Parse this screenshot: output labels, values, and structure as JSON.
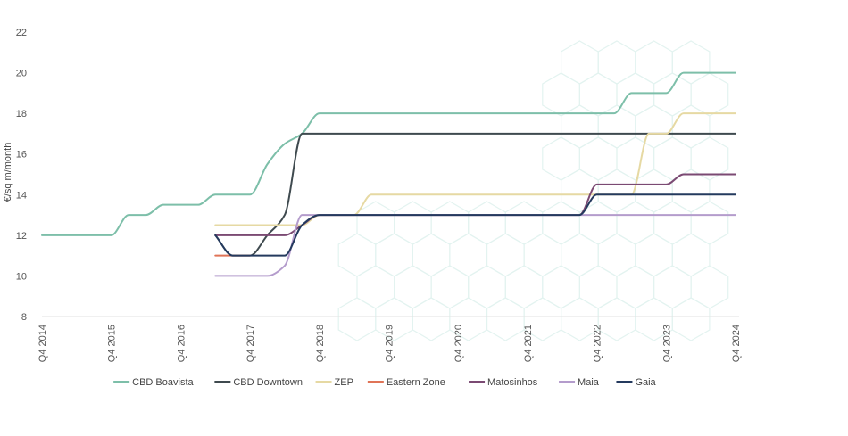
{
  "chart_data": {
    "type": "line",
    "title": "",
    "xlabel": "",
    "ylabel": "€/sq m/month",
    "ylim": [
      8,
      22
    ],
    "y_ticks": [
      8,
      10,
      12,
      14,
      16,
      18,
      20,
      22
    ],
    "x_ticks": [
      {
        "t": 0,
        "label": "Q4 2014"
      },
      {
        "t": 4,
        "label": "Q4 2015"
      },
      {
        "t": 8,
        "label": "Q4 2016"
      },
      {
        "t": 12,
        "label": "Q4 2017"
      },
      {
        "t": 16,
        "label": "Q4 2018"
      },
      {
        "t": 20,
        "label": "Q4 2019"
      },
      {
        "t": 24,
        "label": "Q4 2020"
      },
      {
        "t": 28,
        "label": "Q4 2021"
      },
      {
        "t": 32,
        "label": "Q4 2022"
      },
      {
        "t": 36,
        "label": "Q4 2023"
      },
      {
        "t": 40,
        "label": "Q4 2024"
      }
    ],
    "x_unit": "quarters since Q4 2014",
    "grid": false,
    "legend_position": "bottom",
    "series": [
      {
        "name": "CBD Boavista",
        "color": "#7dbfa9",
        "points": [
          [
            0,
            12
          ],
          [
            3,
            12
          ],
          [
            4,
            12
          ],
          [
            5,
            13
          ],
          [
            6,
            13
          ],
          [
            7,
            13.5
          ],
          [
            8,
            13.5
          ],
          [
            9,
            13.5
          ],
          [
            10,
            14
          ],
          [
            11,
            14
          ],
          [
            12,
            14
          ],
          [
            13,
            15.5
          ],
          [
            14,
            16.5
          ],
          [
            15,
            17
          ],
          [
            16,
            18
          ],
          [
            17,
            18
          ],
          [
            32,
            18
          ],
          [
            33,
            18
          ],
          [
            34,
            19
          ],
          [
            35,
            19
          ],
          [
            36,
            19
          ],
          [
            37,
            20
          ],
          [
            38,
            20
          ],
          [
            40,
            20
          ]
        ]
      },
      {
        "name": "CBD Downtown",
        "color": "#3f4a4f",
        "points": [
          [
            10,
            12
          ],
          [
            11,
            11
          ],
          [
            12,
            11
          ],
          [
            13,
            12
          ],
          [
            14,
            13
          ],
          [
            15,
            17
          ],
          [
            16,
            17
          ],
          [
            40,
            17
          ]
        ]
      },
      {
        "name": "ZEP",
        "color": "#e6d9a3",
        "points": [
          [
            10,
            12.5
          ],
          [
            15,
            12.5
          ],
          [
            16,
            13
          ],
          [
            17,
            13
          ],
          [
            18,
            13
          ],
          [
            19,
            14
          ],
          [
            20,
            14
          ],
          [
            31,
            14
          ],
          [
            32,
            14
          ],
          [
            33,
            14
          ],
          [
            34,
            14
          ],
          [
            35,
            17
          ],
          [
            36,
            17
          ],
          [
            37,
            18
          ],
          [
            38,
            18
          ],
          [
            40,
            18
          ]
        ]
      },
      {
        "name": "Eastern Zone",
        "color": "#e07457",
        "points": [
          [
            10,
            11
          ],
          [
            11,
            11
          ],
          [
            12,
            11
          ]
        ]
      },
      {
        "name": "Matosinhos",
        "color": "#7b4a73",
        "points": [
          [
            10,
            12
          ],
          [
            14,
            12
          ],
          [
            15,
            12.5
          ],
          [
            16,
            13
          ],
          [
            17,
            13
          ],
          [
            30,
            13
          ],
          [
            31,
            13
          ],
          [
            32,
            14.5
          ],
          [
            33,
            14.5
          ],
          [
            35,
            14.5
          ],
          [
            36,
            14.5
          ],
          [
            37,
            15
          ],
          [
            38,
            15
          ],
          [
            40,
            15
          ]
        ]
      },
      {
        "name": "Maia",
        "color": "#b49ccc",
        "points": [
          [
            10,
            10
          ],
          [
            13,
            10
          ],
          [
            14,
            10.5
          ],
          [
            15,
            13
          ],
          [
            16,
            13
          ],
          [
            40,
            13
          ]
        ]
      },
      {
        "name": "Gaia",
        "color": "#243a5e",
        "points": [
          [
            10,
            12
          ],
          [
            11,
            11
          ],
          [
            14,
            11
          ],
          [
            15,
            12.5
          ],
          [
            16,
            13
          ],
          [
            30,
            13
          ],
          [
            31,
            13
          ],
          [
            32,
            14
          ],
          [
            33,
            14
          ],
          [
            40,
            14
          ]
        ]
      }
    ]
  }
}
